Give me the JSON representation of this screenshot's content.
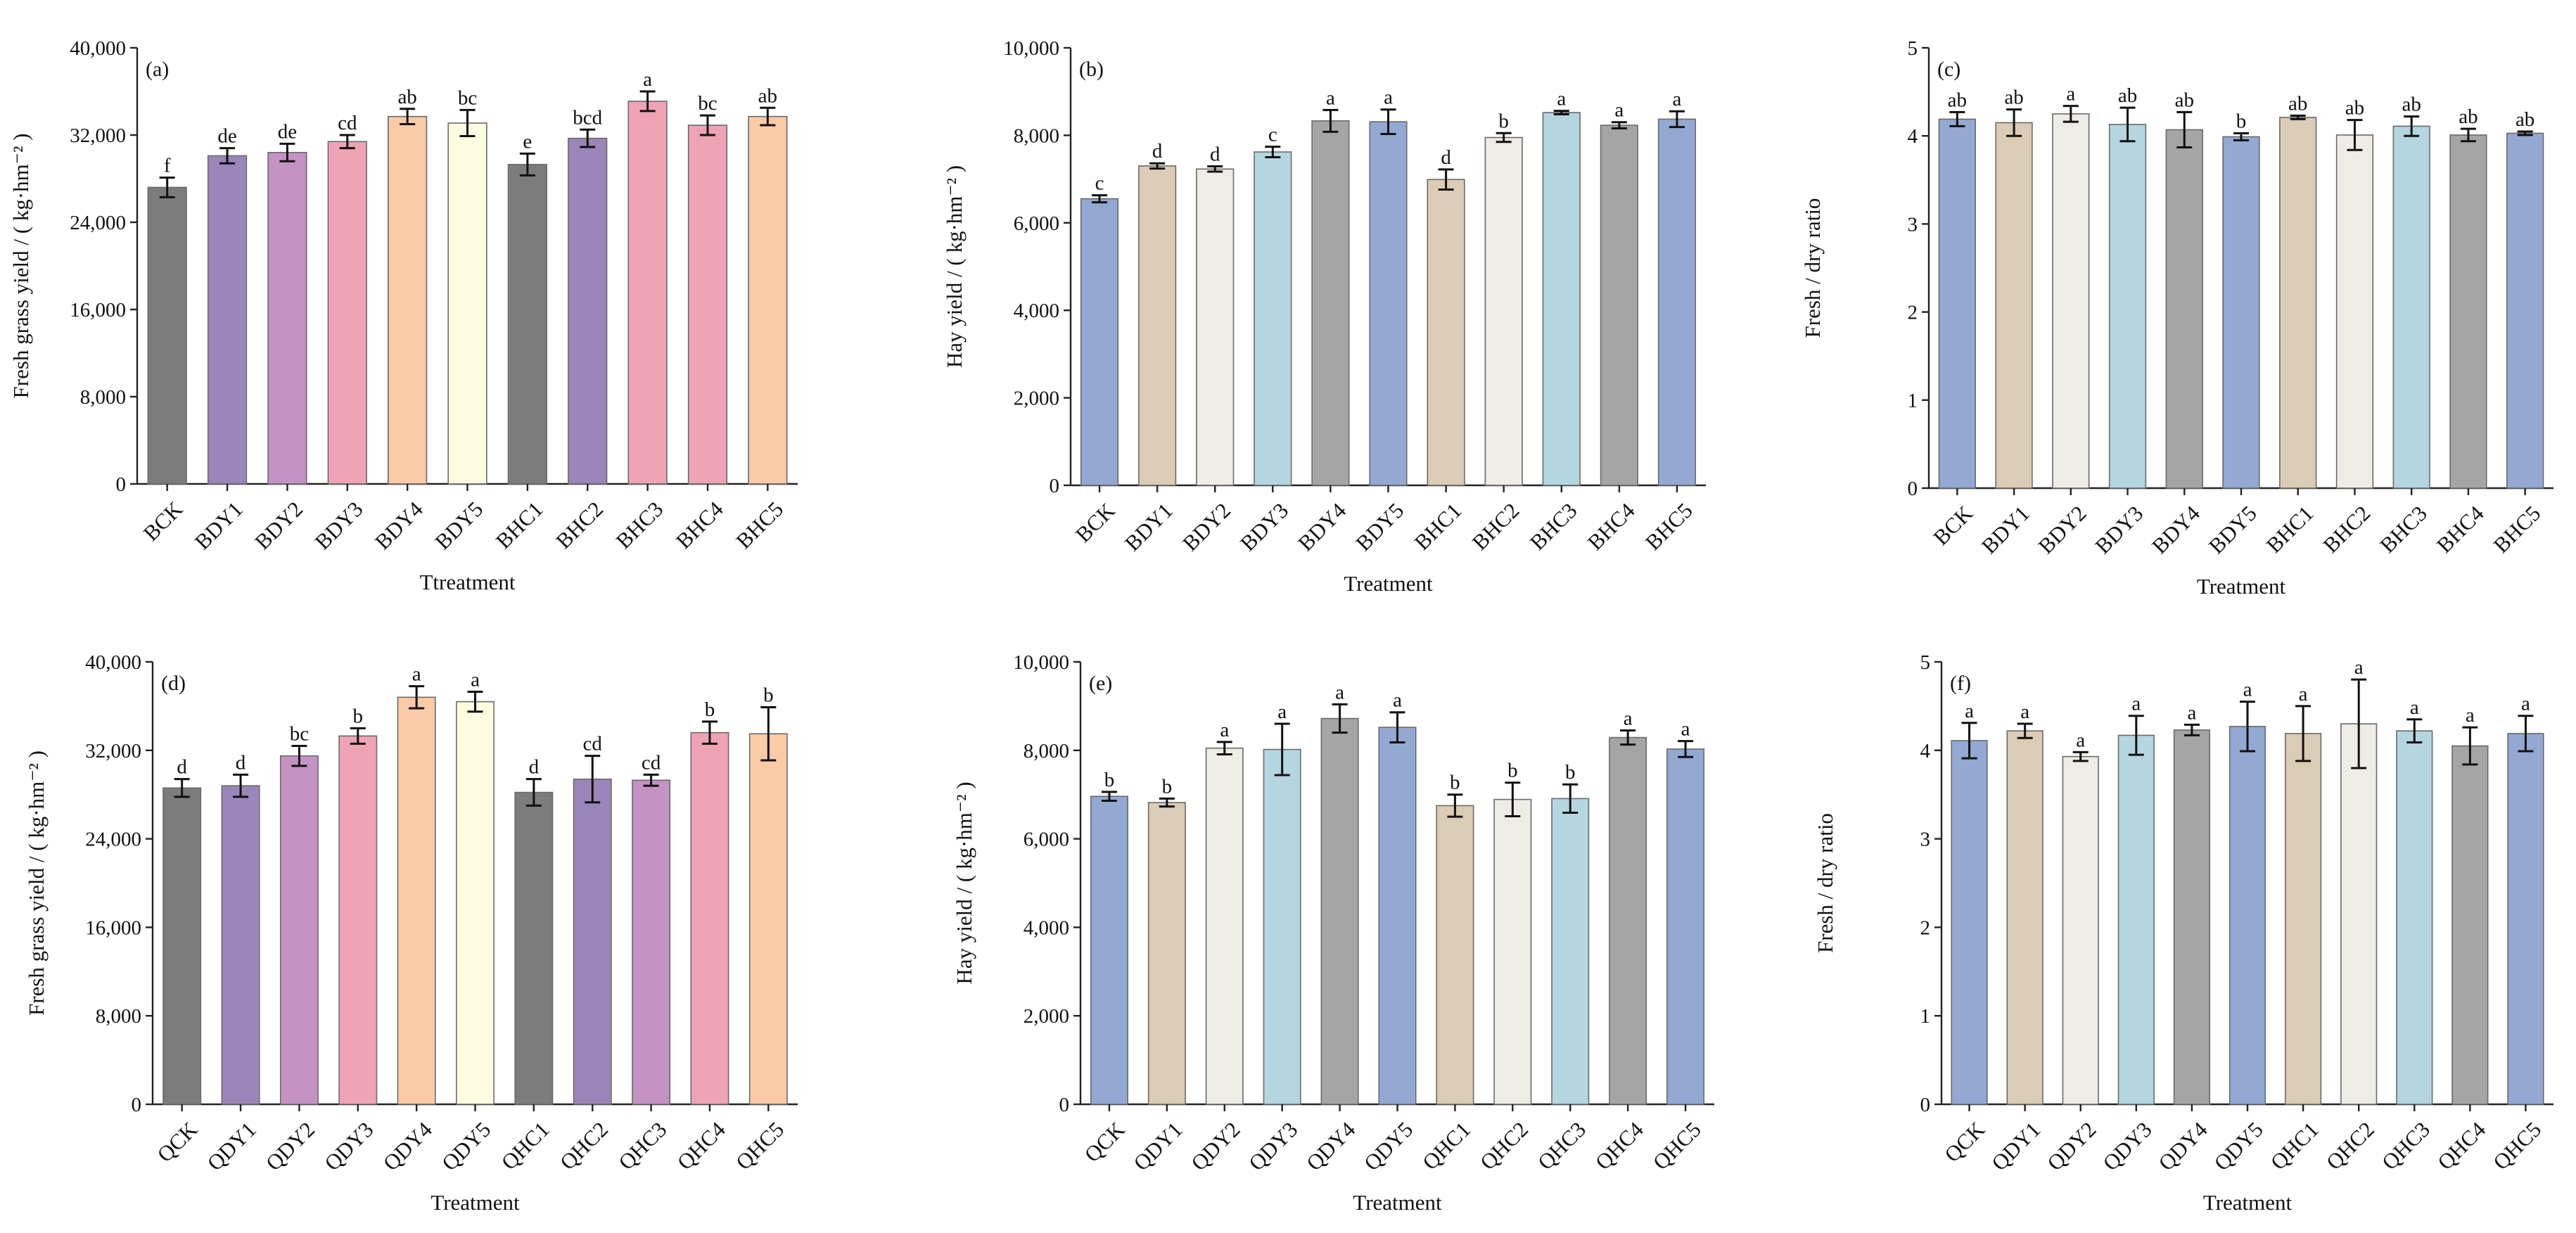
{
  "figure": {
    "colors": {
      "gray": "#7c7c7c",
      "purple": "#9a86b8",
      "mauve": "#c592c4",
      "pink": "#eea4b6",
      "peach": "#fbcaa6",
      "cream": "#fdfbe0",
      "blue": "#93a8d3",
      "tan": "#dccbb5",
      "offwhite": "#efebe6",
      "lightblue": "#b5d6e0",
      "midgray": "#a5a5a5"
    }
  },
  "chart_data": [
    {
      "panel": "(a)",
      "type": "bar",
      "ylabel": "Fresh grass yield / ( kg·hm⁻² )",
      "xlabel": "Ttreatment",
      "ylim": [
        0,
        40000
      ],
      "yticks": [
        0,
        8000,
        16000,
        24000,
        32000,
        40000
      ],
      "ytick_labels": [
        "0",
        "8,000",
        "16,000",
        "24,000",
        "32,000",
        "40,000"
      ],
      "categories": [
        "BCK",
        "BDY1",
        "BDY2",
        "BDY3",
        "BDY4",
        "BDY5",
        "BHC1",
        "BHC2",
        "BHC3",
        "BHC4",
        "BHC5"
      ],
      "values": [
        27200,
        30100,
        30400,
        31400,
        33700,
        33100,
        29300,
        31700,
        35100,
        32900,
        33700
      ],
      "errors": [
        900,
        700,
        800,
        600,
        700,
        1200,
        1000,
        800,
        900,
        900,
        800
      ],
      "letters": [
        "f",
        "de",
        "de",
        "cd",
        "ab",
        "bc",
        "e",
        "bcd",
        "a",
        "bc",
        "ab"
      ],
      "colors": [
        "#7c7c7c",
        "#9a86b8",
        "#c592c4",
        "#eea4b6",
        "#fbcaa6",
        "#fdfbe0",
        "#7c7c7c",
        "#9a86b8",
        "#eea4b6",
        "#eea4b6",
        "#fbcaa6"
      ]
    },
    {
      "panel": "(b)",
      "type": "bar",
      "ylabel": "Hay yield  / ( kg·hm⁻² )",
      "xlabel": "Treatment",
      "ylim": [
        0,
        10000
      ],
      "yticks": [
        0,
        2000,
        4000,
        6000,
        8000,
        10000
      ],
      "ytick_labels": [
        "0",
        "2,000",
        "4,000",
        "6,000",
        "8,000",
        "10,000"
      ],
      "categories": [
        "BCK",
        "BDY1",
        "BDY2",
        "BDY3",
        "BDY4",
        "BDY5",
        "BHC1",
        "BHC2",
        "BHC3",
        "BHC4",
        "BHC5"
      ],
      "values": [
        6550,
        7300,
        7230,
        7620,
        8330,
        8310,
        6990,
        7950,
        8520,
        8230,
        8370
      ],
      "errors": [
        80,
        60,
        60,
        120,
        250,
        280,
        230,
        100,
        40,
        70,
        180
      ],
      "letters": [
        "c",
        "d",
        "d",
        "c",
        "a",
        "a",
        "d",
        "b",
        "a",
        "a",
        "a"
      ],
      "colors": [
        "#93a8d3",
        "#dccbb5",
        "#efebe6",
        "#b5d6e0",
        "#a5a5a5",
        "#93a8d3",
        "#dccbb5",
        "#efebe6",
        "#b5d6e0",
        "#a5a5a5",
        "#93a8d3"
      ]
    },
    {
      "panel": "(c)",
      "type": "bar",
      "ylabel": "Fresh / dry ratio",
      "xlabel": "Treatment",
      "ylim": [
        0,
        5
      ],
      "yticks": [
        0,
        1,
        2,
        3,
        4,
        5
      ],
      "ytick_labels": [
        "0",
        "1",
        "2",
        "3",
        "4",
        "5"
      ],
      "categories": [
        "BCK",
        "BDY1",
        "BDY2",
        "BDY3",
        "BDY4",
        "BDY5",
        "BHC1",
        "BHC2",
        "BHC3",
        "BHC4",
        "BHC5"
      ],
      "values": [
        4.19,
        4.15,
        4.25,
        4.13,
        4.07,
        3.99,
        4.21,
        4.01,
        4.11,
        4.01,
        4.03
      ],
      "errors": [
        0.08,
        0.15,
        0.09,
        0.19,
        0.2,
        0.04,
        0.02,
        0.17,
        0.11,
        0.07,
        0.02
      ],
      "letters": [
        "ab",
        "ab",
        "a",
        "ab",
        "ab",
        "b",
        "ab",
        "ab",
        "ab",
        "ab",
        "ab"
      ],
      "colors": [
        "#93a8d3",
        "#dccbb5",
        "#efebe6",
        "#b5d6e0",
        "#a5a5a5",
        "#93a8d3",
        "#dccbb5",
        "#efebe6",
        "#b5d6e0",
        "#a5a5a5",
        "#93a8d3"
      ]
    },
    {
      "panel": "(d)",
      "type": "bar",
      "ylabel": "Fresh grass yield / ( kg·hm⁻² )",
      "xlabel": "Treatment",
      "ylim": [
        0,
        40000
      ],
      "yticks": [
        0,
        8000,
        16000,
        24000,
        32000,
        40000
      ],
      "ytick_labels": [
        "0",
        "8,000",
        "16,000",
        "24,000",
        "32,000",
        "40,000"
      ],
      "categories": [
        "QCK",
        "QDY1",
        "QDY2",
        "QDY3",
        "QDY4",
        "QDY5",
        "QHC1",
        "QHC2",
        "QHC3",
        "QHC4",
        "QHC5"
      ],
      "values": [
        28600,
        28800,
        31500,
        33300,
        36800,
        36400,
        28200,
        29400,
        29300,
        33600,
        33500
      ],
      "errors": [
        800,
        1000,
        900,
        700,
        1000,
        900,
        1200,
        2100,
        500,
        1000,
        2400
      ],
      "letters": [
        "d",
        "d",
        "bc",
        "b",
        "a",
        "a",
        "d",
        "cd",
        "cd",
        "b",
        "b"
      ],
      "colors": [
        "#7c7c7c",
        "#9a86b8",
        "#c592c4",
        "#eea4b6",
        "#fbcaa6",
        "#fdfbe0",
        "#7c7c7c",
        "#9a86b8",
        "#c592c4",
        "#eea4b6",
        "#fbcaa6"
      ]
    },
    {
      "panel": "(e)",
      "type": "bar",
      "ylabel": "Hay yield  / ( kg·hm⁻² )",
      "xlabel": "Treatment",
      "ylim": [
        0,
        10000
      ],
      "yticks": [
        0,
        2000,
        4000,
        6000,
        8000,
        10000
      ],
      "ytick_labels": [
        "0",
        "2,000",
        "4,000",
        "6,000",
        "8,000",
        "10,000"
      ],
      "categories": [
        "QCK",
        "QDY1",
        "QDY2",
        "QDY3",
        "QDY4",
        "QDY5",
        "QHC1",
        "QHC2",
        "QHC3",
        "QHC4",
        "QHC5"
      ],
      "values": [
        6960,
        6820,
        8050,
        8020,
        8720,
        8520,
        6750,
        6890,
        6910,
        8290,
        8030
      ],
      "errors": [
        100,
        90,
        140,
        580,
        320,
        340,
        250,
        380,
        320,
        160,
        180
      ],
      "letters": [
        "b",
        "b",
        "a",
        "a",
        "a",
        "a",
        "b",
        "b",
        "b",
        "a",
        "a"
      ],
      "colors": [
        "#93a8d3",
        "#dccbb5",
        "#efebe6",
        "#b5d6e0",
        "#a5a5a5",
        "#93a8d3",
        "#dccbb5",
        "#efebe6",
        "#b5d6e0",
        "#a5a5a5",
        "#93a8d3"
      ]
    },
    {
      "panel": "(f)",
      "type": "bar",
      "ylabel": "Fresh / dry ratio",
      "xlabel": "Treatment",
      "ylim": [
        0,
        5
      ],
      "yticks": [
        0,
        1,
        2,
        3,
        4,
        5
      ],
      "ytick_labels": [
        "0",
        "1",
        "2",
        "3",
        "4",
        "5"
      ],
      "categories": [
        "QCK",
        "QDY1",
        "QDY2",
        "QDY3",
        "QDY4",
        "QDY5",
        "QHC1",
        "QHC2",
        "QHC3",
        "QHC4",
        "QHC5"
      ],
      "values": [
        4.11,
        4.22,
        3.93,
        4.17,
        4.23,
        4.27,
        4.19,
        4.3,
        4.22,
        4.05,
        4.19
      ],
      "errors": [
        0.2,
        0.08,
        0.05,
        0.22,
        0.06,
        0.28,
        0.31,
        0.5,
        0.13,
        0.21,
        0.2
      ],
      "letters": [
        "a",
        "a",
        "a",
        "a",
        "a",
        "a",
        "a",
        "a",
        "a",
        "a",
        "a"
      ],
      "colors": [
        "#93a8d3",
        "#dccbb5",
        "#efebe6",
        "#b5d6e0",
        "#a5a5a5",
        "#93a8d3",
        "#dccbb5",
        "#efebe6",
        "#b5d6e0",
        "#a5a5a5",
        "#93a8d3"
      ]
    }
  ]
}
